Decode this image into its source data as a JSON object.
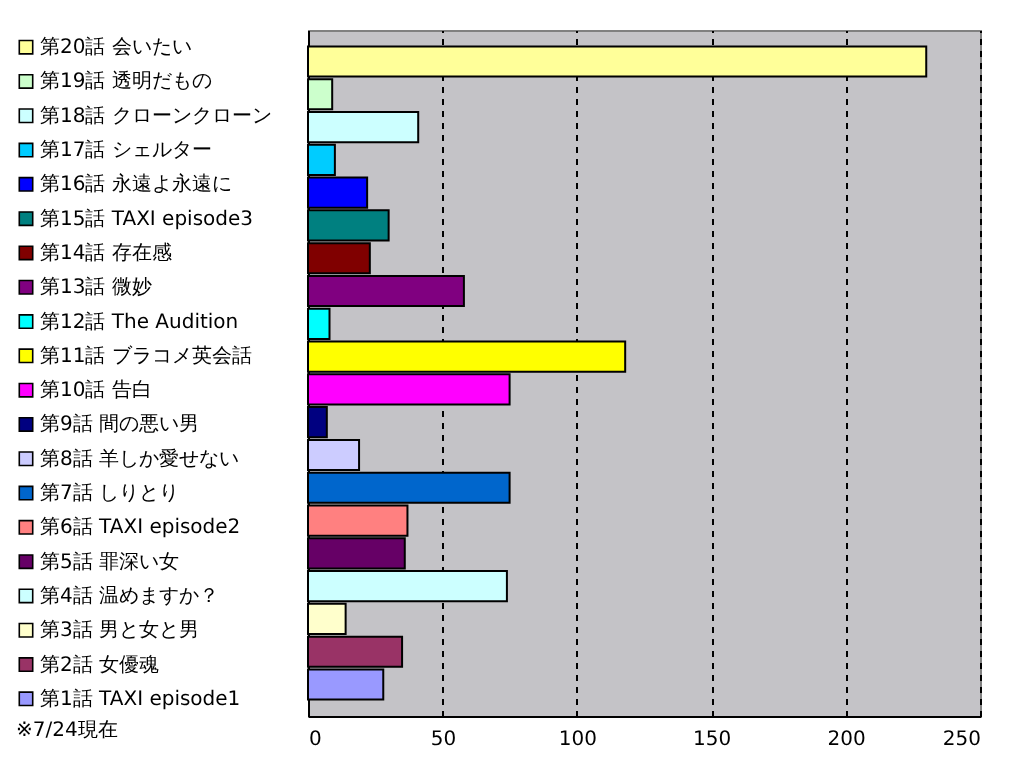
{
  "chart_data": {
    "type": "bar",
    "orientation": "horizontal",
    "categories": [
      "第20話 会いたい",
      "第19話 透明だもの",
      "第18話 クローンクローン",
      "第17話 シェルター",
      "第16話 永遠よ永遠に",
      "第15話 TAXI episode3",
      "第14話 存在感",
      "第13話 微妙",
      "第12話 The Audition",
      "第11話 ブラコメ英会話",
      "第10話 告白",
      "第9話 間の悪い男",
      "第8話 羊しか愛せない",
      "第7話 しりとり",
      "第6話 TAXI episode2",
      "第5話 罪深い女",
      "第4話 温めますか？",
      "第3話 男と女と男",
      "第2話 女優魂",
      "第1話 TAXI episode1"
    ],
    "values": [
      230,
      9,
      41,
      10,
      22,
      30,
      23,
      58,
      8,
      118,
      75,
      7,
      19,
      75,
      37,
      36,
      74,
      14,
      35,
      28
    ],
    "colors": [
      "#ffff99",
      "#ccffcc",
      "#ccffff",
      "#00ccff",
      "#0000ff",
      "#008080",
      "#800000",
      "#800080",
      "#00ffff",
      "#ffff00",
      "#ff00ff",
      "#000080",
      "#ccccff",
      "#0066cc",
      "#ff8080",
      "#660066",
      "#ccffff",
      "#ffffcc",
      "#993366",
      "#9999ff"
    ],
    "xlim": [
      0,
      250
    ],
    "xticks": [
      0,
      50,
      100,
      150,
      200,
      250
    ],
    "grid": "x",
    "annotations": [
      "※7/24現在"
    ]
  }
}
